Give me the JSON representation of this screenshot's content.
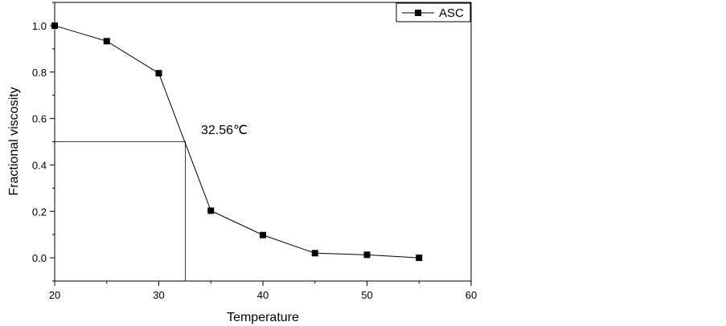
{
  "chart_data": {
    "type": "line",
    "xlabel": "Temperature",
    "ylabel": "Fractional viscosity",
    "xlim": [
      20,
      60
    ],
    "ylim": [
      -0.1,
      1.1
    ],
    "xticks": [
      20,
      30,
      40,
      50,
      60
    ],
    "yticks": [
      0.0,
      0.2,
      0.4,
      0.6,
      0.8,
      1.0
    ],
    "x_tick_labels": [
      "20",
      "30",
      "40",
      "50",
      "60"
    ],
    "y_tick_labels": [
      "0.0",
      "0.2",
      "0.4",
      "0.6",
      "0.8",
      "1.0"
    ],
    "grid": false,
    "legend": "top-right",
    "series": [
      {
        "name": "ASC",
        "marker": "square",
        "color": "#000000",
        "x": [
          20,
          25,
          30,
          35,
          40,
          45,
          50,
          55
        ],
        "y": [
          1.0,
          0.933,
          0.795,
          0.203,
          0.098,
          0.02,
          0.013,
          0.0
        ]
      }
    ],
    "annotation": {
      "text": "32.56℃",
      "point": [
        32.56,
        0.5
      ]
    }
  }
}
